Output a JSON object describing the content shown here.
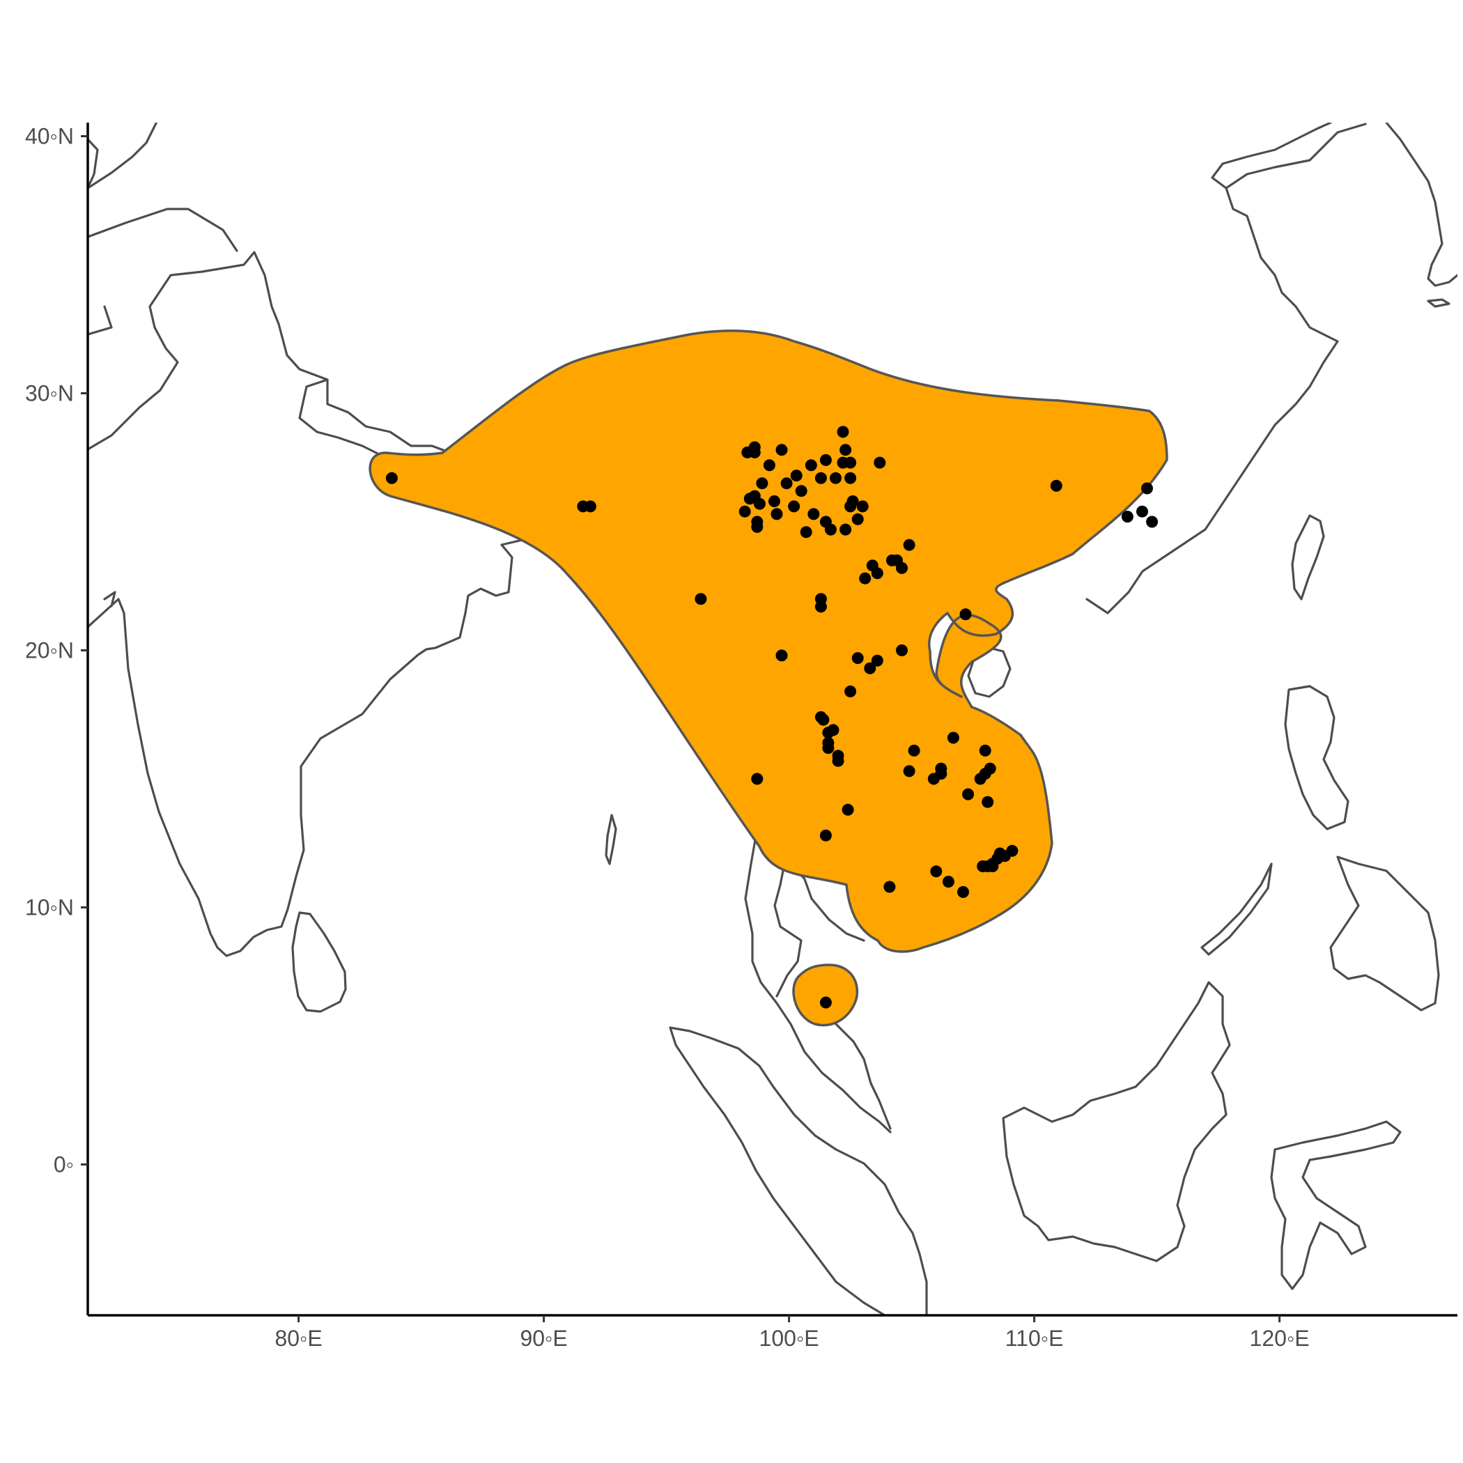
{
  "map": {
    "x_axis": {
      "ticks": [
        {
          "value": 80,
          "label": "80◦E"
        },
        {
          "value": 90,
          "label": "90◦E"
        },
        {
          "value": 100,
          "label": "100◦E"
        },
        {
          "value": 110,
          "label": "110◦E"
        },
        {
          "value": 120,
          "label": "120◦E"
        }
      ],
      "range": [
        71.3,
        127.2
      ]
    },
    "y_axis": {
      "ticks": [
        {
          "value": 0,
          "label": "0◦"
        },
        {
          "value": 10,
          "label": "10◦N"
        },
        {
          "value": 20,
          "label": "20◦N"
        },
        {
          "value": 30,
          "label": "30◦N"
        },
        {
          "value": 40,
          "label": "40◦N"
        }
      ],
      "range": [
        -5.7,
        40.7
      ]
    },
    "colors": {
      "range_fill": "#ffa500",
      "range_outline": "#555555",
      "coastline": "#4d4d4d",
      "occurrence_points": "#000000"
    },
    "occurrences": [
      [
        83.8,
        26.7
      ],
      [
        91.6,
        25.6
      ],
      [
        91.9,
        25.6
      ],
      [
        96.4,
        22.0
      ],
      [
        98.2,
        25.4
      ],
      [
        98.3,
        27.7
      ],
      [
        98.4,
        25.9
      ],
      [
        98.6,
        26.0
      ],
      [
        98.6,
        27.9
      ],
      [
        98.6,
        27.7
      ],
      [
        98.7,
        25.0
      ],
      [
        98.8,
        25.7
      ],
      [
        98.7,
        24.8
      ],
      [
        98.9,
        26.5
      ],
      [
        99.2,
        27.2
      ],
      [
        99.4,
        25.8
      ],
      [
        99.5,
        25.3
      ],
      [
        99.7,
        27.8
      ],
      [
        99.9,
        26.5
      ],
      [
        100.2,
        25.6
      ],
      [
        100.3,
        26.8
      ],
      [
        100.5,
        26.2
      ],
      [
        100.7,
        24.6
      ],
      [
        100.9,
        27.2
      ],
      [
        101.0,
        25.3
      ],
      [
        101.3,
        26.7
      ],
      [
        101.5,
        27.4
      ],
      [
        101.5,
        25.0
      ],
      [
        101.7,
        24.7
      ],
      [
        101.9,
        26.7
      ],
      [
        102.2,
        28.5
      ],
      [
        102.3,
        27.8
      ],
      [
        102.3,
        24.7
      ],
      [
        102.2,
        27.3
      ],
      [
        102.5,
        27.3
      ],
      [
        102.5,
        26.7
      ],
      [
        102.6,
        25.8
      ],
      [
        102.5,
        25.6
      ],
      [
        102.8,
        25.1
      ],
      [
        103.0,
        25.6
      ],
      [
        103.1,
        22.8
      ],
      [
        103.4,
        23.3
      ],
      [
        103.6,
        23.0
      ],
      [
        103.7,
        27.3
      ],
      [
        104.2,
        23.5
      ],
      [
        104.4,
        23.5
      ],
      [
        104.6,
        23.2
      ],
      [
        104.9,
        24.1
      ],
      [
        101.3,
        22.0
      ],
      [
        101.3,
        21.7
      ],
      [
        107.2,
        21.4
      ],
      [
        99.7,
        19.8
      ],
      [
        102.8,
        19.7
      ],
      [
        103.3,
        19.3
      ],
      [
        103.6,
        19.6
      ],
      [
        104.6,
        20.0
      ],
      [
        102.5,
        18.4
      ],
      [
        101.3,
        17.4
      ],
      [
        101.4,
        17.3
      ],
      [
        101.6,
        16.8
      ],
      [
        101.8,
        16.9
      ],
      [
        101.6,
        16.4
      ],
      [
        101.6,
        16.2
      ],
      [
        102.0,
        15.9
      ],
      [
        102.0,
        15.7
      ],
      [
        105.1,
        16.1
      ],
      [
        104.9,
        15.3
      ],
      [
        105.9,
        15.0
      ],
      [
        106.2,
        15.4
      ],
      [
        106.2,
        15.2
      ],
      [
        106.7,
        16.6
      ],
      [
        107.3,
        14.4
      ],
      [
        107.8,
        15.0
      ],
      [
        108.0,
        15.2
      ],
      [
        108.2,
        15.4
      ],
      [
        108.0,
        16.1
      ],
      [
        108.1,
        14.1
      ],
      [
        98.7,
        15.0
      ],
      [
        102.4,
        13.8
      ],
      [
        101.5,
        12.8
      ],
      [
        104.1,
        10.8
      ],
      [
        106.0,
        11.4
      ],
      [
        106.5,
        11.0
      ],
      [
        107.1,
        10.6
      ],
      [
        107.9,
        11.6
      ],
      [
        108.1,
        11.6
      ],
      [
        108.3,
        11.7
      ],
      [
        108.5,
        11.9
      ],
      [
        108.6,
        12.1
      ],
      [
        108.8,
        12.0
      ],
      [
        109.1,
        12.2
      ],
      [
        108.3,
        11.6
      ],
      [
        110.9,
        26.4
      ],
      [
        114.6,
        26.3
      ],
      [
        113.8,
        25.2
      ],
      [
        114.4,
        25.4
      ],
      [
        114.8,
        25.0
      ],
      [
        101.5,
        6.3
      ]
    ]
  }
}
